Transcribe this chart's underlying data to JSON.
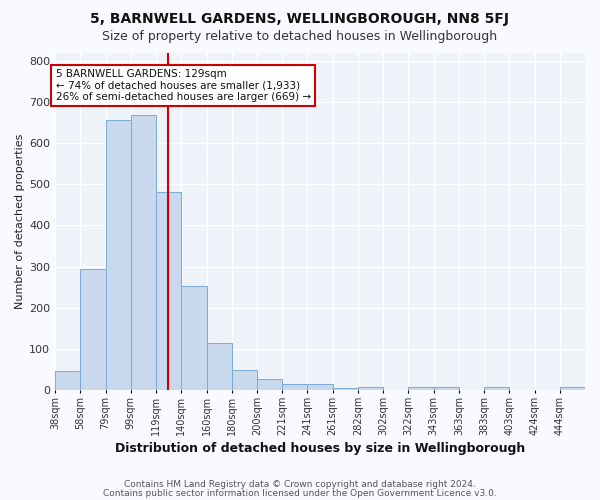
{
  "title1": "5, BARNWELL GARDENS, WELLINGBOROUGH, NN8 5FJ",
  "title2": "Size of property relative to detached houses in Wellingborough",
  "xlabel": "Distribution of detached houses by size in Wellingborough",
  "ylabel": "Number of detached properties",
  "bar_labels": [
    "38sqm",
    "58sqm",
    "79sqm",
    "99sqm",
    "119sqm",
    "140sqm",
    "160sqm",
    "180sqm",
    "200sqm",
    "221sqm",
    "241sqm",
    "261sqm",
    "282sqm",
    "302sqm",
    "322sqm",
    "343sqm",
    "363sqm",
    "383sqm",
    "403sqm",
    "424sqm",
    "444sqm"
  ],
  "bar_values": [
    47,
    295,
    655,
    668,
    480,
    252,
    115,
    50,
    27,
    15,
    15,
    4,
    8,
    0,
    8,
    8,
    0,
    8,
    0,
    0,
    8
  ],
  "bar_color": "#c9d9ed",
  "bar_edge_color": "#7aacd1",
  "background_color": "#eef3fa",
  "grid_color": "#ffffff",
  "vline_index": 4.5,
  "annotation_line1": "5 BARNWELL GARDENS: 129sqm",
  "annotation_line2": "← 74% of detached houses are smaller (1,933)",
  "annotation_line3": "26% of semi-detached houses are larger (669) →",
  "annotation_box_color": "#ffffff",
  "annotation_box_edge": "#cc0000",
  "vline_color": "#cc0000",
  "ylim": [
    0,
    820
  ],
  "yticks": [
    0,
    100,
    200,
    300,
    400,
    500,
    600,
    700,
    800
  ],
  "footer1": "Contains HM Land Registry data © Crown copyright and database right 2024.",
  "footer2": "Contains public sector information licensed under the Open Government Licence v3.0.",
  "title1_fontsize": 10,
  "title2_fontsize": 9,
  "ylabel_fontsize": 8,
  "xlabel_fontsize": 9,
  "tick_fontsize": 7,
  "footer_fontsize": 6.5
}
